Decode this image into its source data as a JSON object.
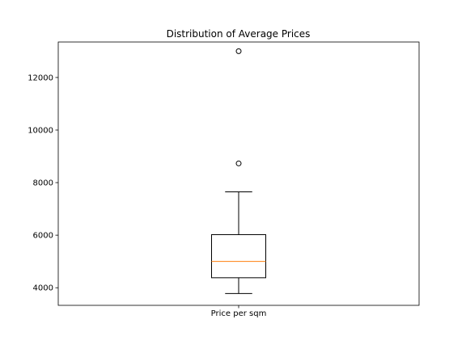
{
  "chart_data": {
    "type": "box",
    "title": "Distribution of Average Prices",
    "xlabel": "",
    "ylabel": "",
    "categories": [
      "Price per sqm"
    ],
    "ylim": [
      3330,
      13350
    ],
    "yticks": [
      4000,
      6000,
      8000,
      10000,
      12000
    ],
    "ytick_labels": [
      "4000",
      "6000",
      "8000",
      "10000",
      "12000"
    ],
    "grid": false,
    "boxes": [
      {
        "label": "Price per sqm",
        "whisker_low": 3780,
        "q1": 4380,
        "median": 5000,
        "q3": 6020,
        "whisker_high": 7650,
        "outliers": [
          8730,
          13000
        ]
      }
    ],
    "colors": {
      "box": "#000000",
      "median": "#ff7f0e",
      "outlier": "#000000"
    }
  }
}
